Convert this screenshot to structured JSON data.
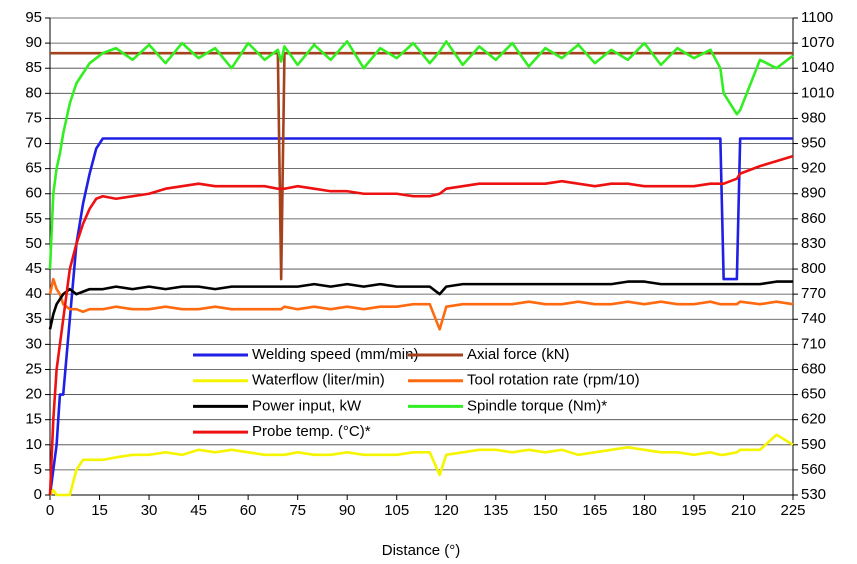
{
  "chart_data": {
    "type": "line",
    "x_label": "Distance (°)",
    "x": [
      0,
      1,
      2,
      3,
      4,
      6,
      8,
      10,
      12,
      14,
      16,
      20,
      25,
      30,
      35,
      40,
      45,
      50,
      55,
      60,
      65,
      69,
      70,
      71,
      75,
      80,
      85,
      90,
      95,
      100,
      105,
      110,
      115,
      118,
      120,
      125,
      130,
      135,
      140,
      145,
      150,
      155,
      160,
      165,
      170,
      175,
      180,
      185,
      190,
      195,
      200,
      203,
      204,
      208,
      209,
      215,
      220,
      225
    ],
    "xlim": [
      0,
      225
    ],
    "xticks": [
      0,
      15,
      30,
      45,
      60,
      75,
      90,
      105,
      120,
      135,
      150,
      165,
      180,
      195,
      210,
      225
    ],
    "ylim": [
      0,
      95
    ],
    "yticks": [
      0,
      5,
      10,
      15,
      20,
      25,
      30,
      35,
      40,
      45,
      50,
      55,
      60,
      65,
      70,
      75,
      80,
      85,
      90,
      95
    ],
    "y2lim": [
      530,
      1100
    ],
    "y2ticks": [
      530,
      560,
      590,
      620,
      650,
      680,
      710,
      740,
      770,
      800,
      830,
      860,
      890,
      920,
      950,
      980,
      1010,
      1040,
      1070,
      1100
    ],
    "grid": true,
    "legend": "inside-bottom",
    "series": [
      {
        "name": "Welding speed (mm/min)",
        "color": "#1f1fe6",
        "values": [
          0,
          5,
          10,
          20,
          20,
          35,
          50,
          58,
          64,
          69,
          71,
          71,
          71,
          71,
          71,
          71,
          71,
          71,
          71,
          71,
          71,
          71,
          71,
          71,
          71,
          71,
          71,
          71,
          71,
          71,
          71,
          71,
          71,
          71,
          71,
          71,
          71,
          71,
          71,
          71,
          71,
          71,
          71,
          71,
          71,
          71,
          71,
          71,
          71,
          71,
          71,
          71,
          43,
          43,
          71,
          71,
          71,
          71
        ]
      },
      {
        "name": "Axial force (kN)",
        "color": "#a5421c",
        "values": [
          88,
          88,
          88,
          88,
          88,
          88,
          88,
          88,
          88,
          88,
          88,
          88,
          88,
          88,
          88,
          88,
          88,
          88,
          88,
          88,
          88,
          88,
          43,
          88,
          88,
          88,
          88,
          88,
          88,
          88,
          88,
          88,
          88,
          88,
          88,
          88,
          88,
          88,
          88,
          88,
          88,
          88,
          88,
          88,
          88,
          88,
          88,
          88,
          88,
          88,
          88,
          88,
          88,
          88,
          88,
          88,
          88,
          88
        ]
      },
      {
        "name": "Waterflow (liter/min)",
        "color": "#f5f500",
        "values": [
          0,
          1,
          0,
          0,
          0,
          0,
          5,
          7,
          7,
          7,
          7,
          7.5,
          8,
          8,
          8.5,
          8,
          9,
          8.5,
          9,
          8.5,
          8,
          8,
          8,
          8,
          8.5,
          8,
          8,
          8.5,
          8,
          8,
          8,
          8.5,
          8.5,
          4,
          8,
          8.5,
          9,
          9,
          8.5,
          9,
          8.5,
          9,
          8,
          8.5,
          9,
          9.5,
          9,
          8.5,
          8.5,
          8,
          8.5,
          8,
          8,
          8.5,
          9,
          9,
          12,
          10
        ]
      },
      {
        "name": "Tool rotation rate (rpm/10)",
        "color": "#ff6a10",
        "values": [
          40,
          43,
          41,
          40,
          38,
          37,
          37,
          36.5,
          37,
          37,
          37,
          37.5,
          37,
          37,
          37.5,
          37,
          37,
          37.5,
          37,
          37,
          37,
          37,
          37,
          37.5,
          37,
          37.5,
          37,
          37.5,
          37,
          37.5,
          37.5,
          38,
          38,
          33,
          37.5,
          38,
          38,
          38,
          38,
          38.5,
          38,
          38,
          38.5,
          38,
          38,
          38.5,
          38,
          38.5,
          38,
          38,
          38.5,
          38,
          38,
          38,
          38.5,
          38,
          38.5,
          38
        ]
      },
      {
        "name": "Power input, kW",
        "color": "#000000",
        "values": [
          33,
          36,
          38,
          39,
          40,
          41,
          40,
          40.5,
          41,
          41,
          41,
          41.5,
          41,
          41.5,
          41,
          41.5,
          41.5,
          41,
          41.5,
          41.5,
          41.5,
          41.5,
          41.5,
          41.5,
          41.5,
          42,
          41.5,
          42,
          41.5,
          42,
          41.5,
          41.5,
          41.5,
          40,
          41.5,
          42,
          42,
          42,
          42,
          42,
          42,
          42,
          42,
          42,
          42,
          42.5,
          42.5,
          42,
          42,
          42,
          42,
          42,
          42,
          42,
          42,
          42,
          42.5,
          42.5
        ]
      },
      {
        "name": "Spindle torque (Nm)*",
        "color": "#33ee22",
        "axis": "y2",
        "values": [
          800,
          890,
          920,
          938,
          962,
          998,
          1022,
          1034,
          1046,
          1052,
          1058,
          1064,
          1050,
          1068,
          1046,
          1070,
          1052,
          1064,
          1040,
          1070,
          1050,
          1062,
          1048,
          1066,
          1044,
          1068,
          1050,
          1072,
          1040,
          1064,
          1052,
          1070,
          1046,
          1060,
          1072,
          1044,
          1066,
          1050,
          1070,
          1042,
          1064,
          1052,
          1068,
          1046,
          1062,
          1050,
          1070,
          1044,
          1064,
          1052,
          1062,
          1040,
          1010,
          985,
          990,
          1050,
          1040,
          1055
        ]
      },
      {
        "name": "Probe temp. (°C)*",
        "color": "#ee1111",
        "axis": "y2",
        "values": [
          530,
          620,
          680,
          710,
          740,
          800,
          830,
          854,
          872,
          884,
          887,
          884,
          887,
          890,
          896,
          899,
          902,
          899,
          899,
          899,
          899,
          896,
          896,
          896,
          899,
          896,
          893,
          893,
          890,
          890,
          890,
          887,
          887,
          890,
          896,
          899,
          902,
          902,
          902,
          902,
          902,
          905,
          902,
          899,
          902,
          902,
          899,
          899,
          899,
          899,
          902,
          902,
          902,
          908,
          914,
          923,
          929,
          935
        ]
      }
    ]
  }
}
